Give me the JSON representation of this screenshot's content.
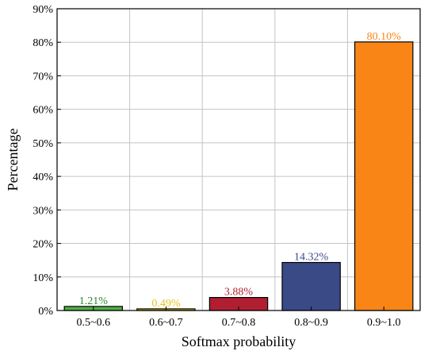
{
  "chart_data": {
    "type": "bar",
    "categories": [
      "0.5~0.6",
      "0.6~0.7",
      "0.7~0.8",
      "0.8~0.9",
      "0.9~1.0"
    ],
    "values": [
      1.21,
      0.49,
      3.88,
      14.32,
      80.1
    ],
    "data_labels": [
      "1.21%",
      "0.49%",
      "3.88%",
      "14.32%",
      "80.10%"
    ],
    "bar_colors": [
      "#4fb046",
      "#e7c21b",
      "#b01f31",
      "#3a4a87",
      "#fa8517"
    ],
    "label_colors": [
      "#2e8a34",
      "#e4c41b",
      "#b01f31",
      "#3a4a87",
      "#fa8517"
    ],
    "xlabel": "Softmax probability",
    "ylabel": "Percentage",
    "ylim": [
      0,
      90
    ],
    "yticks": [
      0,
      10,
      20,
      30,
      40,
      50,
      60,
      70,
      80,
      90
    ],
    "ytick_labels": [
      "0%",
      "10%",
      "20%",
      "30%",
      "40%",
      "50%",
      "60%",
      "70%",
      "80%",
      "90%"
    ],
    "grid": true,
    "legend": "none"
  }
}
